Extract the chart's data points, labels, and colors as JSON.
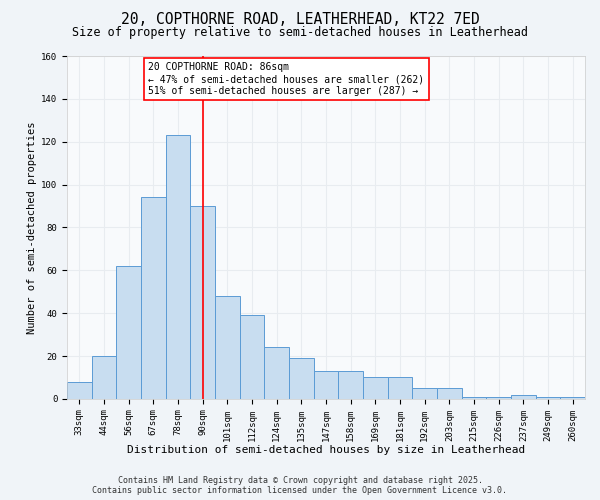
{
  "title_line1": "20, COPTHORNE ROAD, LEATHERHEAD, KT22 7ED",
  "title_line2": "Size of property relative to semi-detached houses in Leatherhead",
  "xlabel": "Distribution of semi-detached houses by size in Leatherhead",
  "ylabel": "Number of semi-detached properties",
  "categories": [
    "33sqm",
    "44sqm",
    "56sqm",
    "67sqm",
    "78sqm",
    "90sqm",
    "101sqm",
    "112sqm",
    "124sqm",
    "135sqm",
    "147sqm",
    "158sqm",
    "169sqm",
    "181sqm",
    "192sqm",
    "203sqm",
    "215sqm",
    "226sqm",
    "237sqm",
    "249sqm",
    "260sqm"
  ],
  "values": [
    8,
    20,
    62,
    94,
    123,
    90,
    48,
    39,
    24,
    19,
    13,
    13,
    10,
    10,
    5,
    5,
    1,
    1,
    2,
    1,
    1
  ],
  "bar_color": "#c8ddf0",
  "bar_edge_color": "#5b9bd5",
  "red_line_x": 5.0,
  "annotation_text_line1": "20 COPTHORNE ROAD: 86sqm",
  "annotation_text_line2": "← 47% of semi-detached houses are smaller (262)",
  "annotation_text_line3": "51% of semi-detached houses are larger (287) →",
  "ylim": [
    0,
    160
  ],
  "yticks": [
    0,
    20,
    40,
    60,
    80,
    100,
    120,
    140,
    160
  ],
  "footnote_line1": "Contains HM Land Registry data © Crown copyright and database right 2025.",
  "footnote_line2": "Contains public sector information licensed under the Open Government Licence v3.0.",
  "bg_color": "#f0f4f8",
  "plot_bg_color": "#f8fafc",
  "grid_color": "#e8ecf0",
  "title_fontsize": 10.5,
  "subtitle_fontsize": 8.5,
  "xlabel_fontsize": 8,
  "ylabel_fontsize": 7.5,
  "tick_fontsize": 6.5,
  "annot_fontsize": 7,
  "footnote_fontsize": 6
}
